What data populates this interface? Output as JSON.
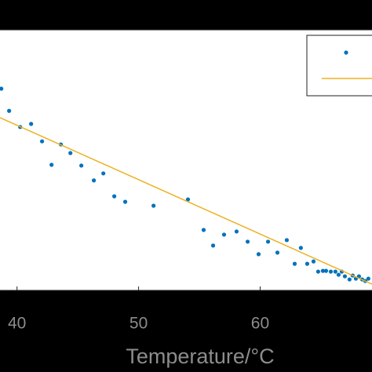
{
  "chart_data": {
    "type": "scatter",
    "xlabel": "Temperature/°C",
    "xlim": [
      38.6,
      69.2
    ],
    "ylim": [
      0,
      100
    ],
    "xticks": [
      40,
      50,
      60
    ],
    "series": [
      {
        "type": "scatter",
        "color": "#0072bd",
        "x": [
          38.71,
          39.35,
          40.26,
          41.16,
          42.06,
          42.84,
          43.61,
          44.39,
          45.29,
          46.32,
          47.1,
          48.0,
          48.9,
          51.23,
          54.06,
          55.35,
          56.13,
          57.03,
          58.06,
          58.97,
          59.87,
          60.65,
          61.42,
          62.19,
          62.84,
          63.35,
          63.87,
          64.39,
          64.77,
          65.16,
          65.42,
          65.81,
          66.19,
          66.45,
          66.71,
          66.97,
          67.35,
          67.61,
          67.87,
          68.13,
          68.39,
          68.65,
          68.9
        ],
        "values": [
          77.4,
          68.9,
          62.7,
          63.9,
          57.2,
          48.2,
          56.0,
          52.7,
          47.9,
          42.2,
          44.9,
          36.1,
          34.0,
          32.5,
          34.9,
          23.2,
          17.2,
          21.4,
          22.6,
          18.7,
          13.9,
          18.7,
          14.5,
          19.3,
          10.2,
          16.3,
          10.2,
          11.1,
          7.2,
          7.5,
          7.5,
          7.2,
          7.2,
          6.0,
          7.2,
          5.4,
          4.2,
          5.7,
          4.5,
          5.4,
          4.2,
          3.6,
          4.5
        ]
      },
      {
        "type": "line",
        "color": "#edb120",
        "x": [
          38.6,
          69.2
        ],
        "values": [
          66.3,
          2.4
        ]
      }
    ]
  }
}
